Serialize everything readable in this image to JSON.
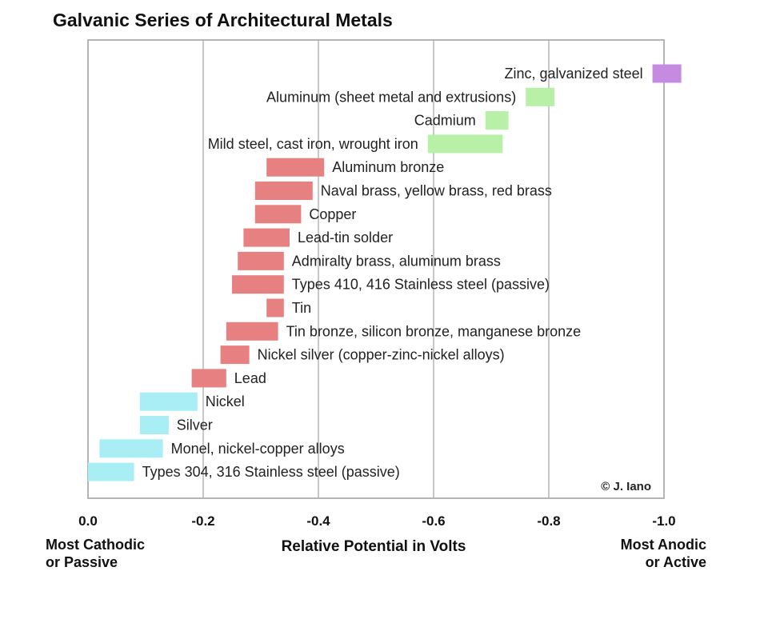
{
  "chart_data": {
    "type": "bar",
    "orientation": "horizontal-range",
    "title": "Galvanic Series of Architectural Metals",
    "xlabel": "Relative Potential in Volts",
    "xlim": [
      0.0,
      -1.0
    ],
    "x_ticks": [
      0.0,
      -0.2,
      -0.4,
      -0.6,
      -0.8,
      -1.0
    ],
    "x_tick_labels": [
      "0.0",
      "-0.2",
      "-0.4",
      "-0.6",
      "-0.8",
      "-1.0"
    ],
    "left_caption": [
      "Most Cathodic",
      "or Passive"
    ],
    "right_caption": [
      "Most Anodic",
      "or Active"
    ],
    "credit": "© J. Iano",
    "grid": "vertical",
    "colors": {
      "anodic": "#c58be0",
      "active": "#b8f0a8",
      "intermediate": "#e78080",
      "passive": "#a8eef4"
    },
    "series": [
      {
        "label": "Zinc, galvanized steel",
        "range": [
          -0.98,
          -1.03
        ],
        "group": "anodic",
        "label_side": "left"
      },
      {
        "label": "Aluminum (sheet metal and extrusions)",
        "range": [
          -0.76,
          -0.81
        ],
        "group": "active",
        "label_side": "left"
      },
      {
        "label": "Cadmium",
        "range": [
          -0.69,
          -0.73
        ],
        "group": "active",
        "label_side": "left"
      },
      {
        "label": "Mild steel, cast iron, wrought iron",
        "range": [
          -0.59,
          -0.72
        ],
        "group": "active",
        "label_side": "left"
      },
      {
        "label": "Aluminum bronze",
        "range": [
          -0.31,
          -0.41
        ],
        "group": "intermediate",
        "label_side": "right"
      },
      {
        "label": "Naval brass, yellow brass, red brass",
        "range": [
          -0.29,
          -0.39
        ],
        "group": "intermediate",
        "label_side": "right"
      },
      {
        "label": "Copper",
        "range": [
          -0.29,
          -0.37
        ],
        "group": "intermediate",
        "label_side": "right"
      },
      {
        "label": "Lead-tin solder",
        "range": [
          -0.27,
          -0.35
        ],
        "group": "intermediate",
        "label_side": "right"
      },
      {
        "label": "Admiralty brass, aluminum brass",
        "range": [
          -0.26,
          -0.34
        ],
        "group": "intermediate",
        "label_side": "right"
      },
      {
        "label": "Types 410, 416 Stainless steel (passive)",
        "range": [
          -0.25,
          -0.34
        ],
        "group": "intermediate",
        "label_side": "right"
      },
      {
        "label": "Tin",
        "range": [
          -0.31,
          -0.34
        ],
        "group": "intermediate",
        "label_side": "right"
      },
      {
        "label": "Tin bronze, silicon bronze, manganese bronze",
        "range": [
          -0.24,
          -0.33
        ],
        "group": "intermediate",
        "label_side": "right"
      },
      {
        "label": "Nickel silver (copper-zinc-nickel alloys)",
        "range": [
          -0.23,
          -0.28
        ],
        "group": "intermediate",
        "label_side": "right"
      },
      {
        "label": "Lead",
        "range": [
          -0.18,
          -0.24
        ],
        "group": "intermediate",
        "label_side": "right"
      },
      {
        "label": "Nickel",
        "range": [
          -0.09,
          -0.19
        ],
        "group": "passive",
        "label_side": "right"
      },
      {
        "label": "Silver",
        "range": [
          -0.09,
          -0.14
        ],
        "group": "passive",
        "label_side": "right"
      },
      {
        "label": "Monel, nickel-copper alloys",
        "range": [
          -0.02,
          -0.13
        ],
        "group": "passive",
        "label_side": "right"
      },
      {
        "label": "Types 304, 316 Stainless steel (passive)",
        "range": [
          0.0,
          -0.08
        ],
        "group": "passive",
        "label_side": "right"
      }
    ]
  }
}
